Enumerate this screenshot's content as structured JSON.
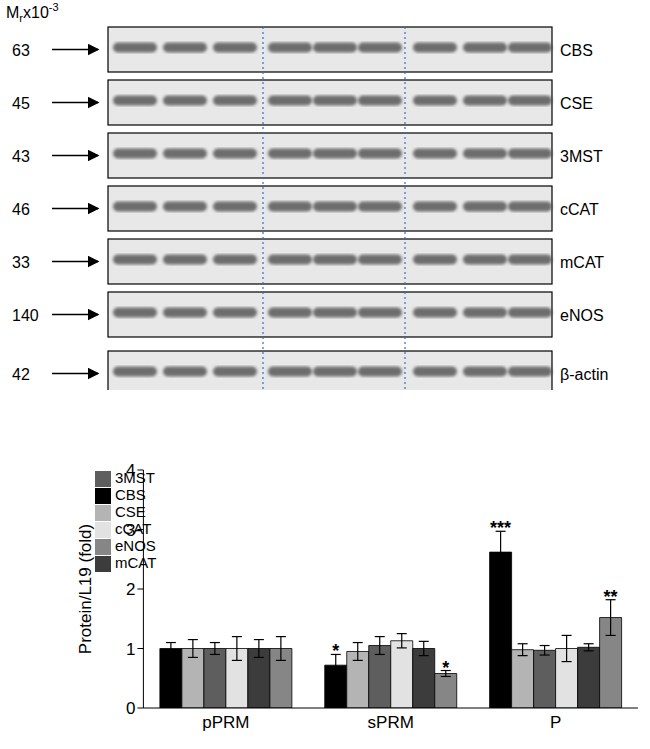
{
  "blot": {
    "mr_label": {
      "main": "M",
      "sub": "r",
      "mid": "x10",
      "sup": "-3"
    },
    "rows": [
      {
        "mr": 63,
        "name": "CBS"
      },
      {
        "mr": 45,
        "name": "CSE"
      },
      {
        "mr": 43,
        "name": "3MST"
      },
      {
        "mr": 46,
        "name": "cCAT"
      },
      {
        "mr": 33,
        "name": "mCAT"
      },
      {
        "mr": 140,
        "name": "eNOS"
      },
      {
        "mr": 42,
        "name": "β-actin"
      }
    ]
  },
  "chart_data": {
    "type": "bar",
    "categories": [
      "pPRM",
      "sPRM",
      "P"
    ],
    "y_label": "Protein/L19 (fold)",
    "ylim": [
      0,
      4
    ],
    "yticks": [
      0,
      1,
      2,
      3,
      4
    ],
    "legend": "upper left",
    "series": [
      {
        "name": "CBS",
        "color": "#000000",
        "values": [
          1,
          0.72,
          2.62
        ],
        "errors": [
          0.1,
          0.18,
          0.35
        ],
        "annotations": [
          null,
          "*",
          "***"
        ]
      },
      {
        "name": "CSE",
        "color": "#b4b4b4",
        "values": [
          1,
          0.95,
          0.98
        ],
        "errors": [
          0.15,
          0.15,
          0.1
        ],
        "annotations": [
          null,
          null,
          null
        ]
      },
      {
        "name": "3MST",
        "color": "#5e5e5e",
        "values": [
          1,
          1.05,
          0.97
        ],
        "errors": [
          0.1,
          0.15,
          0.08
        ],
        "annotations": [
          null,
          null,
          null
        ]
      },
      {
        "name": "cCAT",
        "color": "#e2e2e2",
        "values": [
          1,
          1.13,
          1.0
        ],
        "errors": [
          0.2,
          0.12,
          0.22
        ],
        "annotations": [
          null,
          null,
          null
        ]
      },
      {
        "name": "mCAT",
        "color": "#3c3c3c",
        "values": [
          1,
          1.0,
          1.02
        ],
        "errors": [
          0.15,
          0.12,
          0.06
        ],
        "annotations": [
          null,
          null,
          null
        ]
      },
      {
        "name": "eNOS",
        "color": "#868686",
        "values": [
          1,
          0.58,
          1.52
        ],
        "errors": [
          0.2,
          0.05,
          0.3
        ],
        "annotations": [
          null,
          "*",
          "**"
        ]
      }
    ]
  }
}
